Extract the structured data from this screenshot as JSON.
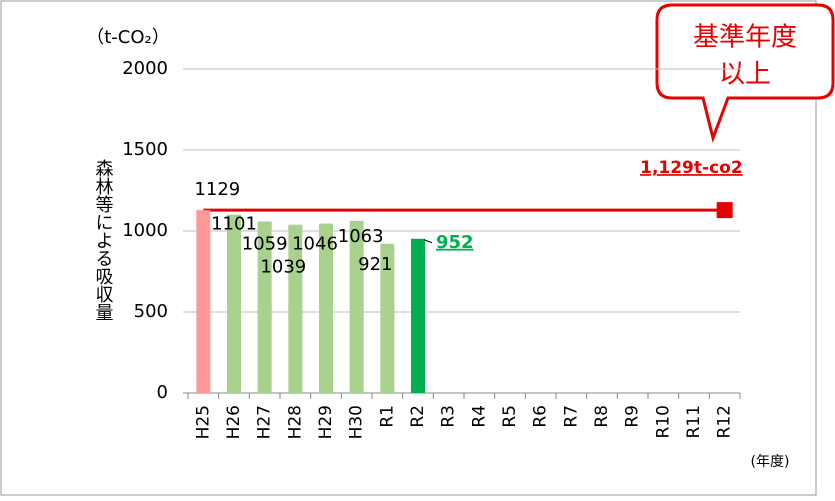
{
  "chart_data": {
    "type": "bar",
    "unit_label": "（t-CO₂）",
    "y_axis_label": "森林等による吸収量",
    "x_axis_label": "(年度)",
    "categories": [
      "H25",
      "H26",
      "H27",
      "H28",
      "H29",
      "H30",
      "R1",
      "R2",
      "R3",
      "R4",
      "R5",
      "R6",
      "R7",
      "R8",
      "R9",
      "R10",
      "R11",
      "R12"
    ],
    "values": [
      1129,
      1101,
      1059,
      1039,
      1046,
      1063,
      921,
      952,
      null,
      null,
      null,
      null,
      null,
      null,
      null,
      null,
      null,
      null
    ],
    "colors": [
      "#ff9999",
      "#a9d18e",
      "#a9d18e",
      "#a9d18e",
      "#a9d18e",
      "#a9d18e",
      "#a9d18e",
      "#00b050",
      null,
      null,
      null,
      null,
      null,
      null,
      null,
      null,
      null,
      null
    ],
    "ylim": [
      0,
      2000
    ],
    "yticks": [
      0,
      500,
      1000,
      1500,
      2000
    ],
    "grid": true,
    "reference_line": {
      "value": 1129,
      "label": "1,129t-co2",
      "color": "#e60000"
    },
    "callout": [
      "基準年度",
      "以上"
    ]
  }
}
